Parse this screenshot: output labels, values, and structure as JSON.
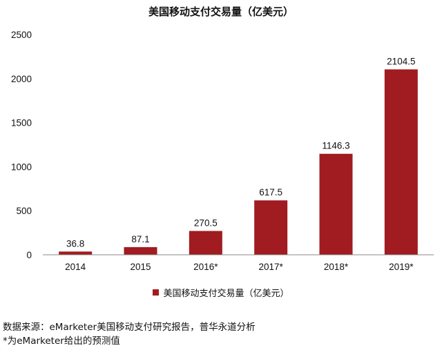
{
  "colors": {
    "bar": "#a01c20",
    "axis": "#888888",
    "text": "#111111"
  },
  "chart_data": {
    "type": "bar",
    "title": "美国移动支付交易量（亿美元）",
    "categories": [
      "2014",
      "2015",
      "2016*",
      "2017*",
      "2018*",
      "2019*"
    ],
    "series": [
      {
        "name": "美国移动支付交易量（亿美元）",
        "values": [
          36.8,
          87.1,
          270.5,
          617.5,
          1146.3,
          2104.5
        ]
      }
    ],
    "value_labels": [
      "36.8",
      "87.1",
      "270.5",
      "617.5",
      "1146.3",
      "2104.5"
    ],
    "y_ticks": [
      "0",
      "500",
      "1000",
      "1500",
      "2000",
      "2500"
    ],
    "ylim": [
      0,
      2500
    ],
    "xlabel": "",
    "ylabel": "",
    "grid": false,
    "legend_position": "bottom"
  },
  "notes": {
    "source": "数据来源：eMarketer美国移动支付研究报告，普华永道分析",
    "footnote": "*为eMarketer给出的预测值"
  }
}
